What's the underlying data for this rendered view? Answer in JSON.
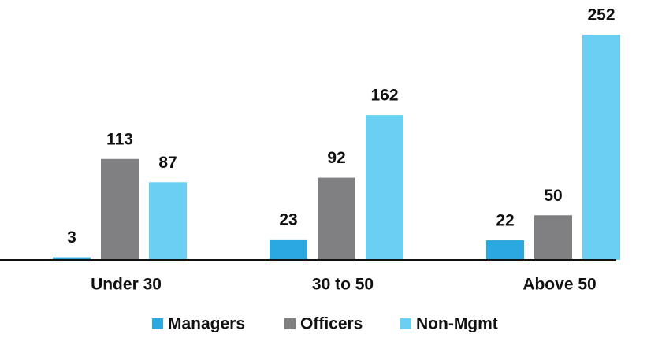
{
  "chart_data": {
    "type": "bar",
    "categories": [
      "Under 30",
      "30 to 50",
      "Above 50"
    ],
    "series": [
      {
        "name": "Managers",
        "color": "#29a9e0",
        "values": [
          3,
          23,
          22
        ]
      },
      {
        "name": "Officers",
        "color": "#808083",
        "values": [
          113,
          92,
          50
        ]
      },
      {
        "name": "Non-Mgmt",
        "color": "#6bcff4",
        "values": [
          87,
          162,
          252
        ]
      }
    ]
  }
}
